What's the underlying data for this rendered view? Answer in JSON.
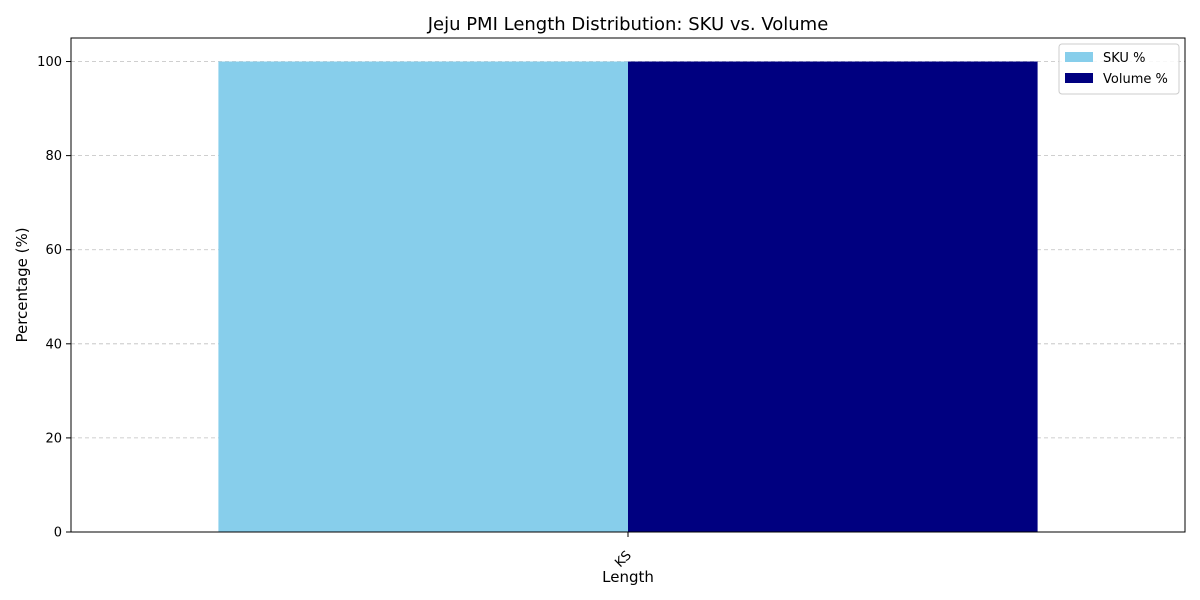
{
  "chart_data": {
    "type": "bar",
    "title": "Jeju PMI Length Distribution: SKU vs. Volume",
    "xlabel": "Length",
    "ylabel": "Percentage (%)",
    "categories": [
      "KS"
    ],
    "series": [
      {
        "name": "SKU %",
        "values": [
          100
        ],
        "color": "#87CEEB"
      },
      {
        "name": "Volume %",
        "values": [
          100
        ],
        "color": "#000080"
      }
    ],
    "ylim": [
      0,
      105
    ],
    "yticks": [
      0,
      20,
      40,
      60,
      80,
      100
    ],
    "grid": true,
    "legend_position": "top-right"
  }
}
